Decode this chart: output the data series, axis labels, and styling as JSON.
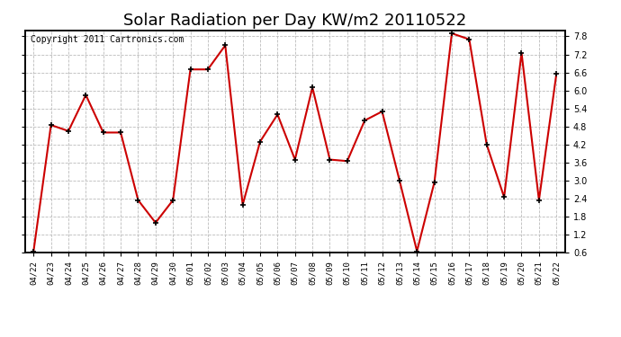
{
  "title": "Solar Radiation per Day KW/m2 20110522",
  "copyright": "Copyright 2011 Cartronics.com",
  "dates": [
    "04/22",
    "04/23",
    "04/24",
    "04/25",
    "04/26",
    "04/27",
    "04/28",
    "04/29",
    "04/30",
    "05/01",
    "05/02",
    "05/03",
    "05/04",
    "05/05",
    "05/06",
    "05/07",
    "05/08",
    "05/09",
    "05/10",
    "05/11",
    "05/12",
    "05/13",
    "05/14",
    "05/15",
    "05/16",
    "05/17",
    "05/18",
    "05/19",
    "05/20",
    "05/21",
    "05/22"
  ],
  "values": [
    0.65,
    4.85,
    4.65,
    5.85,
    4.6,
    4.6,
    2.35,
    1.6,
    2.35,
    6.7,
    6.7,
    7.5,
    2.2,
    4.3,
    5.2,
    3.7,
    6.1,
    3.7,
    3.65,
    5.0,
    5.3,
    3.0,
    0.65,
    2.95,
    7.9,
    7.7,
    4.2,
    2.45,
    7.25,
    2.35,
    6.55
  ],
  "line_color": "#cc0000",
  "marker_color": "#000000",
  "bg_color": "#ffffff",
  "grid_color": "#bbbbbb",
  "ylim_min": 0.6,
  "ylim_max": 8.0,
  "yticks": [
    0.6,
    1.2,
    1.8,
    2.4,
    3.0,
    3.6,
    4.2,
    4.8,
    5.4,
    6.0,
    6.6,
    7.2,
    7.8
  ],
  "title_fontsize": 13,
  "copyright_fontsize": 7,
  "tick_fontsize": 7,
  "xtick_fontsize": 6.5
}
